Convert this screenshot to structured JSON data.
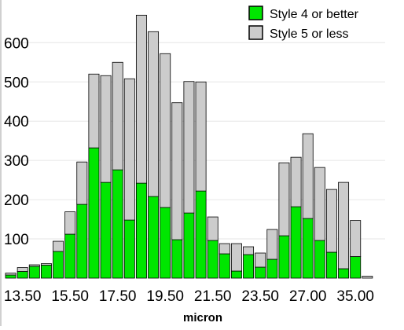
{
  "chart_data": {
    "type": "bar",
    "stacked": true,
    "xlabel": "micron",
    "ylabel": "",
    "title": "",
    "ylim": [
      0,
      680
    ],
    "yticks": [
      100,
      200,
      300,
      400,
      500,
      600
    ],
    "grid": true,
    "legend_position": "top-right",
    "x_tick_labels": [
      "13.50",
      "15.50",
      "17.50",
      "19.50",
      "21.50",
      "23.50",
      "27.00",
      "35.00"
    ],
    "x_tick_bins": [
      1,
      5,
      9,
      13,
      17,
      21,
      25,
      29
    ],
    "bin_count": 32,
    "series": [
      {
        "name": "Style 4 or better",
        "color": "#00e600",
        "values": [
          8,
          17,
          30,
          33,
          68,
          112,
          188,
          332,
          244,
          276,
          148,
          242,
          208,
          180,
          98,
          166,
          222,
          96,
          62,
          18,
          60,
          28,
          48,
          108,
          182,
          152,
          96,
          66,
          24,
          55,
          0,
          0
        ]
      },
      {
        "name": "Style 5 or less",
        "color": "#cccccc",
        "values": [
          5,
          10,
          4,
          4,
          26,
          57,
          108,
          188,
          272,
          274,
          360,
          428,
          420,
          392,
          349,
          335,
          278,
          60,
          26,
          70,
          20,
          36,
          76,
          186,
          126,
          216,
          186,
          160,
          220,
          92,
          5,
          0
        ]
      }
    ]
  }
}
